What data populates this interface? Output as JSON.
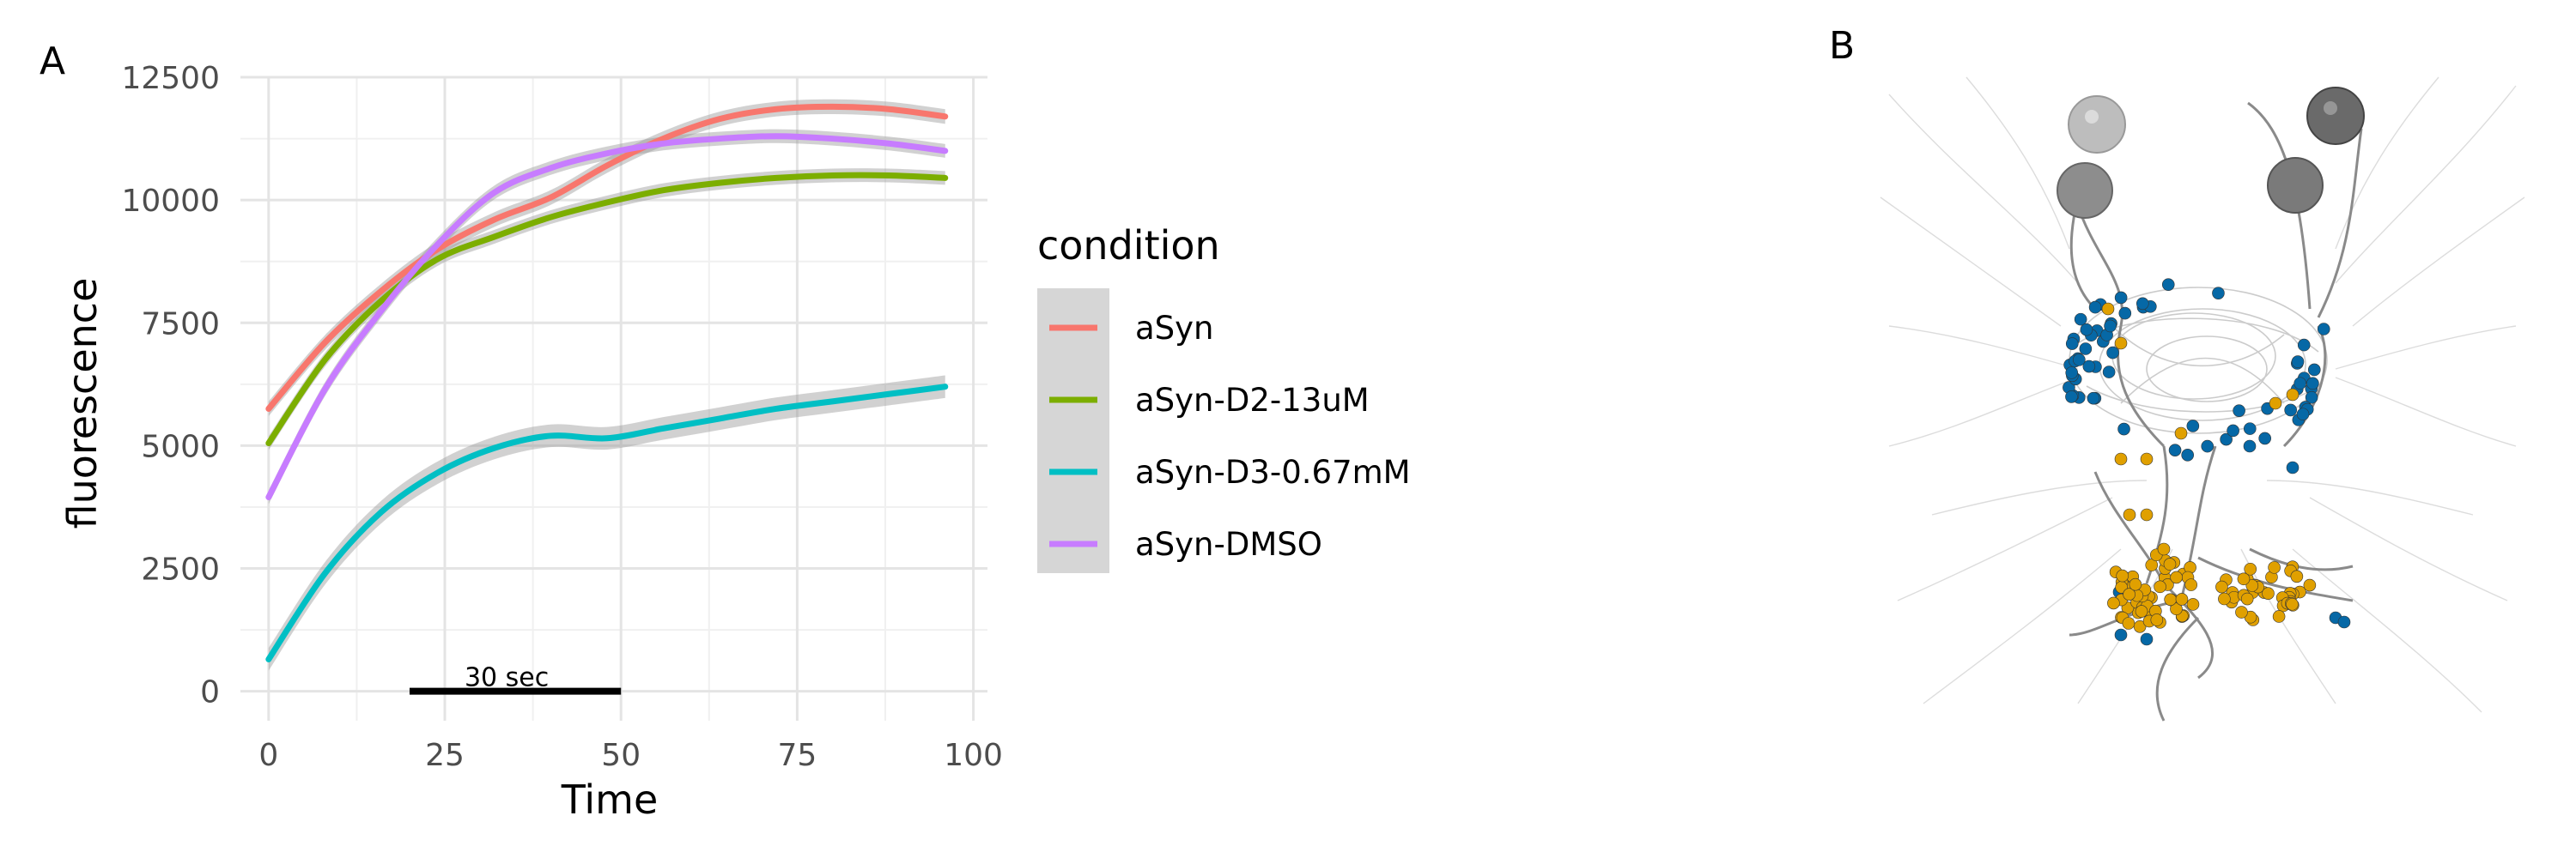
{
  "panels": {
    "a_label": "A",
    "b_label": "B"
  },
  "chart_data": {
    "type": "line",
    "title": "",
    "xlabel": "Time",
    "ylabel": "fluorescence",
    "xlim": [
      -4,
      102
    ],
    "ylim": [
      -600,
      12500
    ],
    "x_ticks": [
      0,
      25,
      50,
      75,
      100
    ],
    "y_ticks": [
      0,
      2500,
      5000,
      7500,
      10000,
      12500
    ],
    "grid": true,
    "legend": {
      "title": "condition",
      "placement": "right"
    },
    "scale_bar": {
      "label": "30 sec",
      "x_start": 20,
      "x_end": 50,
      "y": 0
    },
    "x": [
      0,
      8,
      16,
      24,
      32,
      40,
      48,
      56,
      64,
      72,
      80,
      88,
      96
    ],
    "series": [
      {
        "name": "aSyn",
        "color": "#F8766D",
        "values": [
          5750,
          7100,
          8150,
          9000,
          9600,
          10050,
          10700,
          11250,
          11650,
          11850,
          11900,
          11850,
          11700
        ],
        "band": 150
      },
      {
        "name": "aSyn-D2-13uM",
        "color": "#7CAE00",
        "values": [
          5050,
          6750,
          7950,
          8800,
          9250,
          9650,
          9950,
          10200,
          10350,
          10450,
          10500,
          10500,
          10450
        ],
        "band": 140
      },
      {
        "name": "aSyn-D3-0.67mM",
        "color": "#00BFC4",
        "values": [
          650,
          2400,
          3650,
          4450,
          4950,
          5200,
          5150,
          5350,
          5550,
          5750,
          5900,
          6050,
          6200
        ],
        "band": 230
      },
      {
        "name": "aSyn-DMSO",
        "color": "#C77CFF",
        "values": [
          3950,
          6150,
          7750,
          9100,
          10150,
          10650,
          10950,
          11150,
          11250,
          11300,
          11250,
          11150,
          11000
        ],
        "band": 140
      }
    ]
  },
  "image_panel": {
    "description_icon": "neuron-skeleton-illustration",
    "dot_colors": {
      "blue": "#0668A6",
      "orange": "#E0A000"
    }
  }
}
